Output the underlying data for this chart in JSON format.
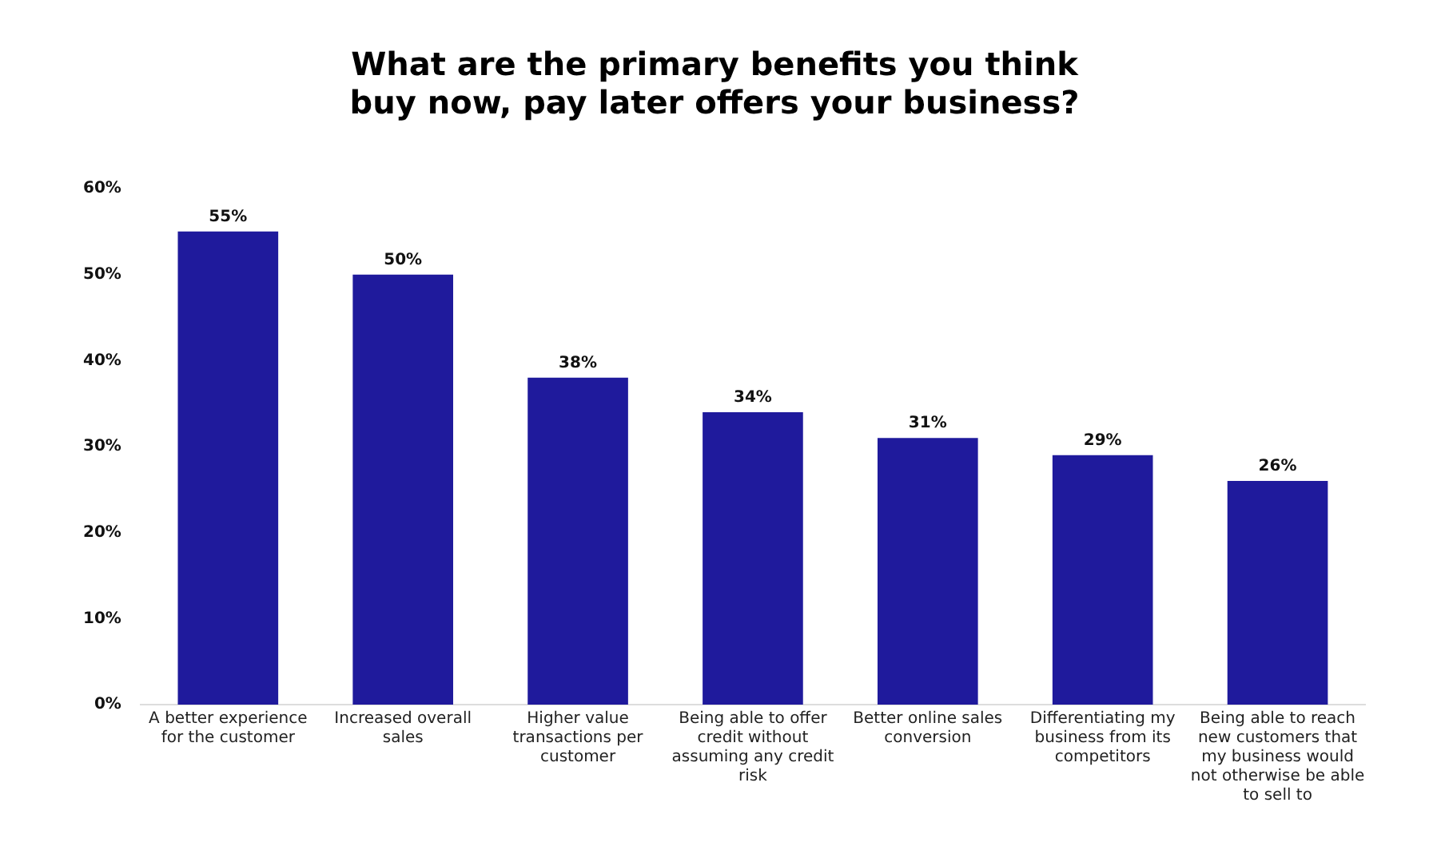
{
  "chart_data": {
    "type": "bar",
    "title": "What are the primary benefits you think buy now, pay later offers your business?",
    "categories": [
      "A better experience for the customer",
      "Increased overall sales",
      "Higher value transactions per customer",
      "Being able to offer credit without assuming any credit risk",
      "Better online sales conversion",
      "Differentiating my business from its competitors",
      "Being able to reach new customers that my business would not otherwise be able to sell to"
    ],
    "values": [
      55,
      50,
      38,
      34,
      31,
      29,
      26
    ],
    "value_labels": [
      "55%",
      "50%",
      "38%",
      "34%",
      "31%",
      "29%",
      "26%"
    ],
    "color": "#1f1a9c",
    "ylim": [
      0,
      60
    ],
    "yticks": [
      {
        "value": 0,
        "label": "0%"
      },
      {
        "value": 10,
        "label": "10%"
      },
      {
        "value": 20,
        "label": "20%"
      },
      {
        "value": 30,
        "label": "30%"
      },
      {
        "value": 40,
        "label": "40%"
      },
      {
        "value": 50,
        "label": "50%"
      },
      {
        "value": 60,
        "label": "60%"
      }
    ],
    "grid": false,
    "legend": false
  }
}
